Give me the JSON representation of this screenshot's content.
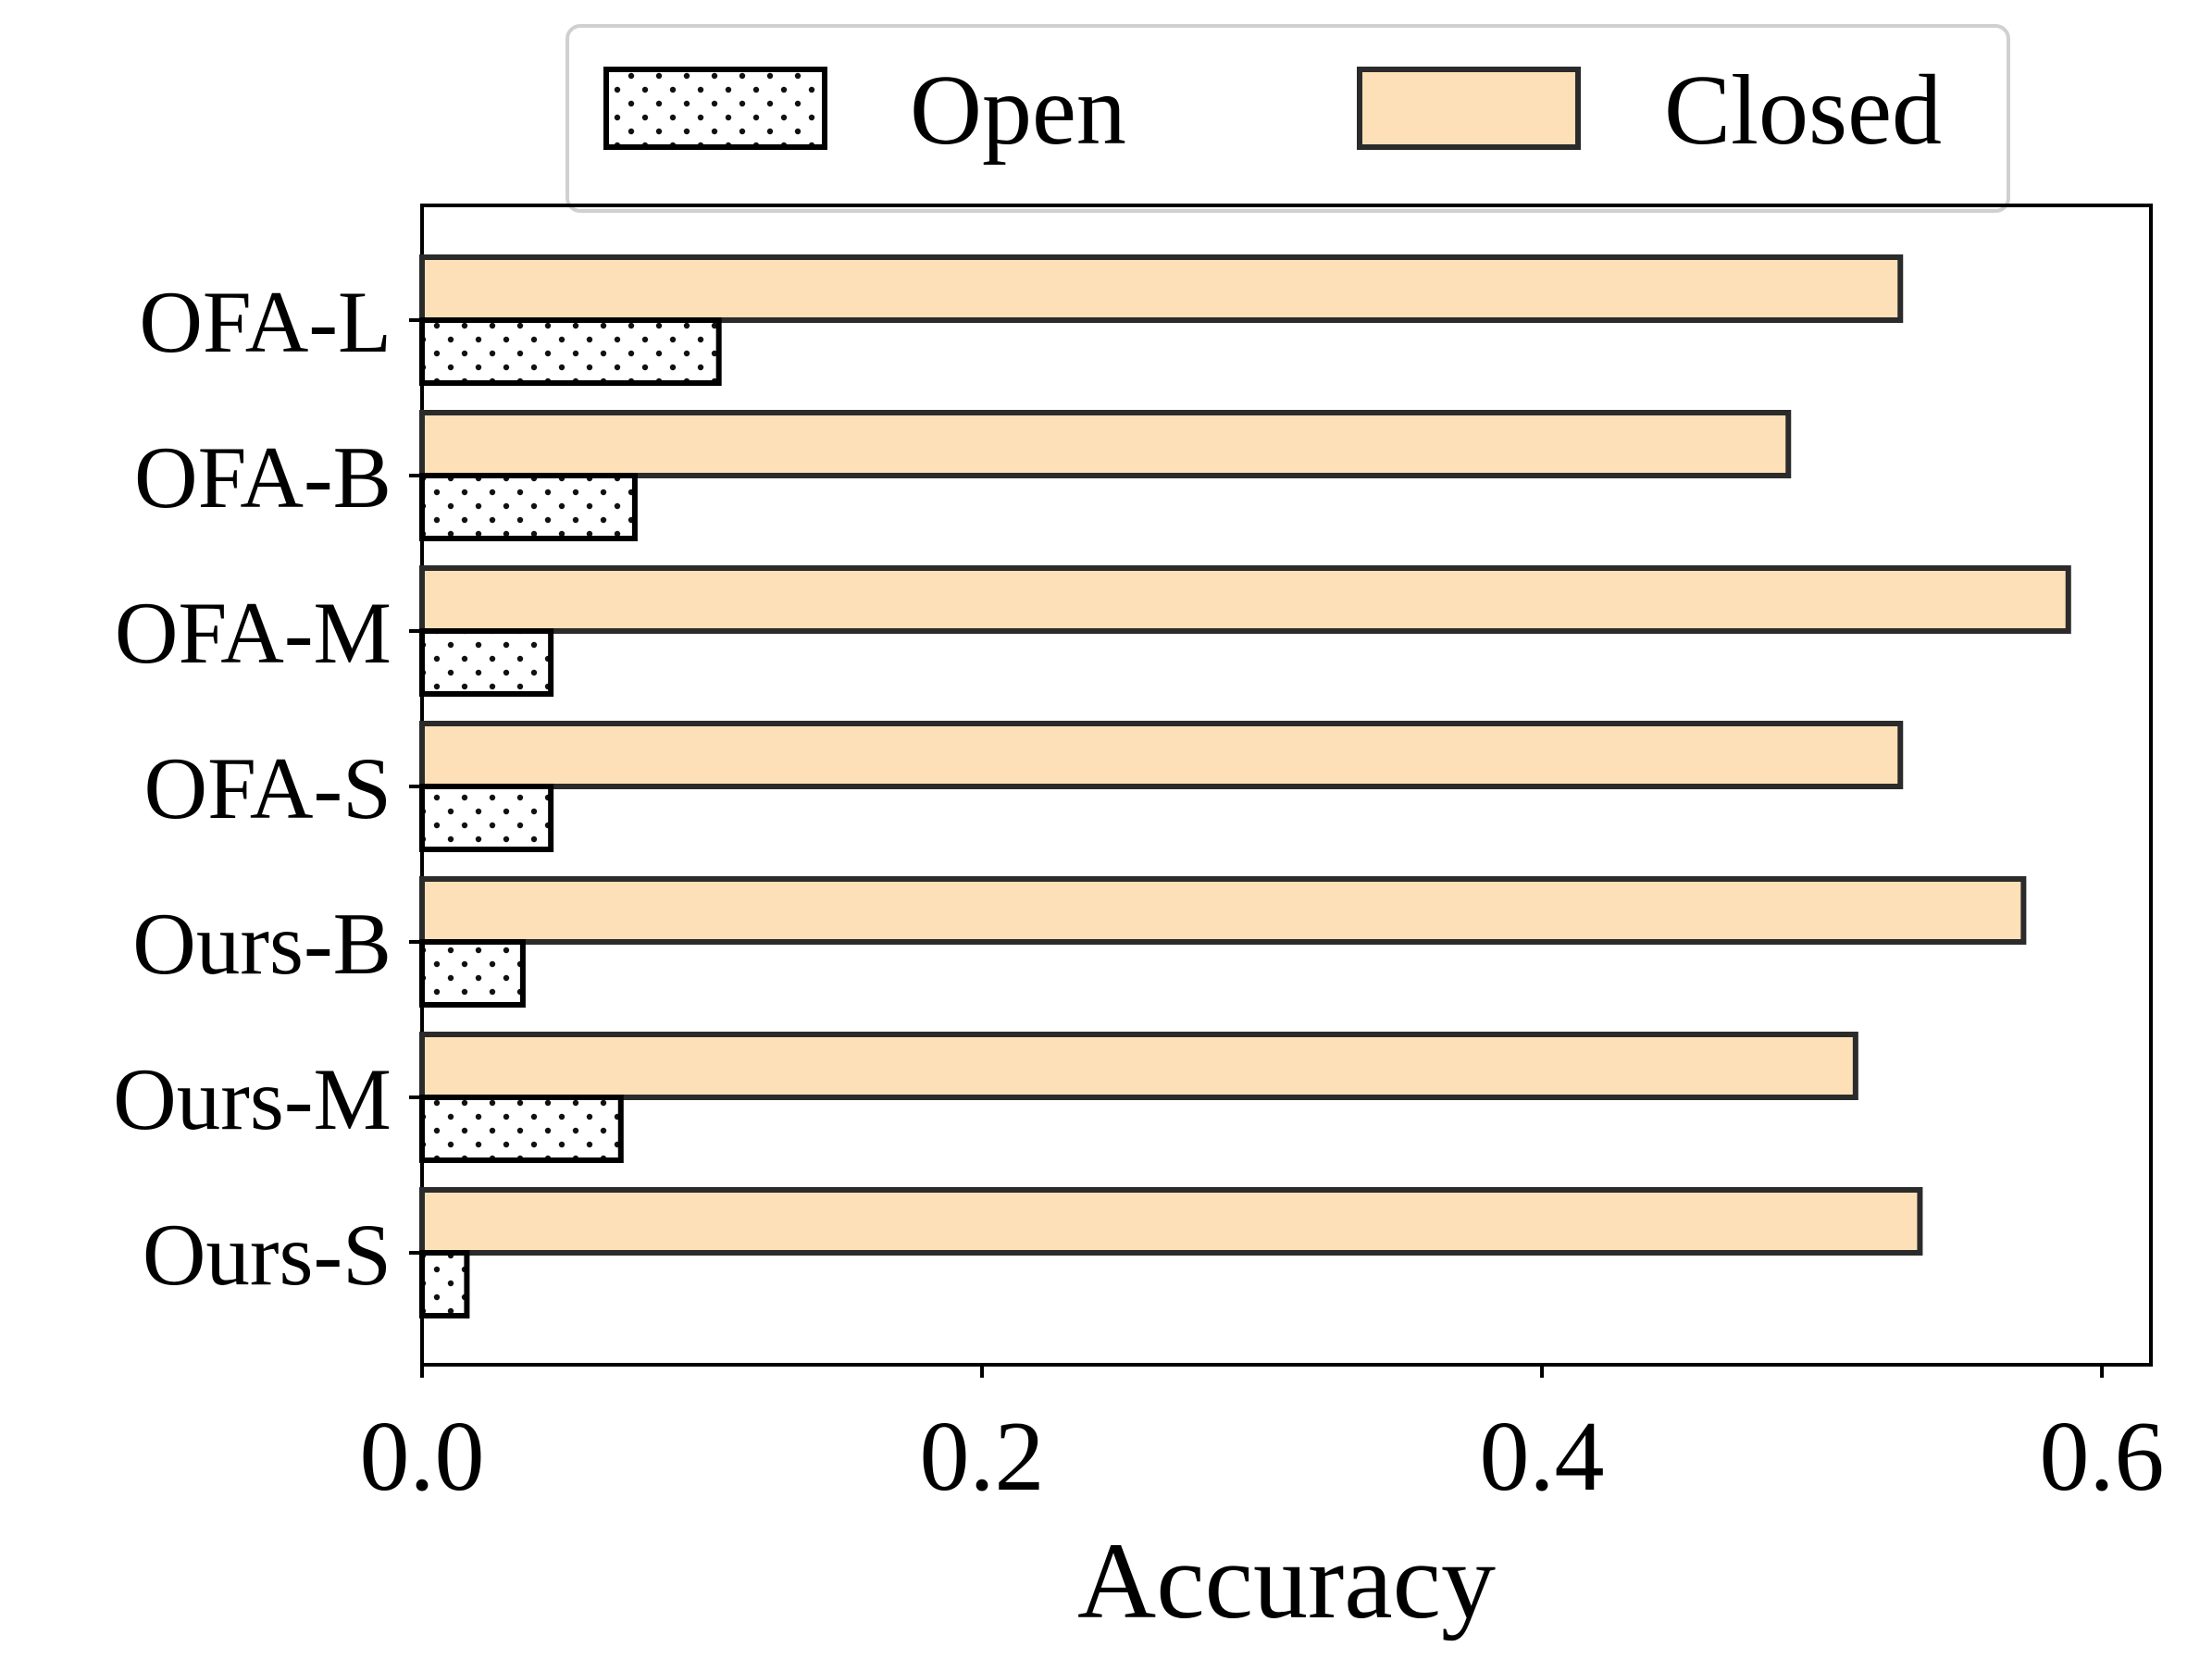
{
  "chart_data": {
    "type": "bar",
    "orientation": "horizontal",
    "categories": [
      "OFA-L",
      "OFA-B",
      "OFA-M",
      "OFA-S",
      "Ours-B",
      "Ours-M",
      "Ours-S"
    ],
    "series": [
      {
        "name": "Open",
        "values": [
          0.106,
          0.076,
          0.046,
          0.046,
          0.036,
          0.071,
          0.016
        ],
        "pattern": "dots",
        "color": "#ffffff"
      },
      {
        "name": "Closed",
        "values": [
          0.528,
          0.488,
          0.588,
          0.528,
          0.572,
          0.512,
          0.535
        ],
        "pattern": "solid",
        "color": "#fde0b7"
      }
    ],
    "xlabel": "Accuracy",
    "ylabel": "",
    "xlim": [
      0,
      0.6175
    ],
    "xticks": [
      "0.0",
      "0.2",
      "0.4",
      "0.6"
    ],
    "xtick_values": [
      0,
      0.2,
      0.4,
      0.6
    ],
    "grid": false,
    "legend": {
      "position": "top-center",
      "columns": 2,
      "frame": true
    }
  }
}
